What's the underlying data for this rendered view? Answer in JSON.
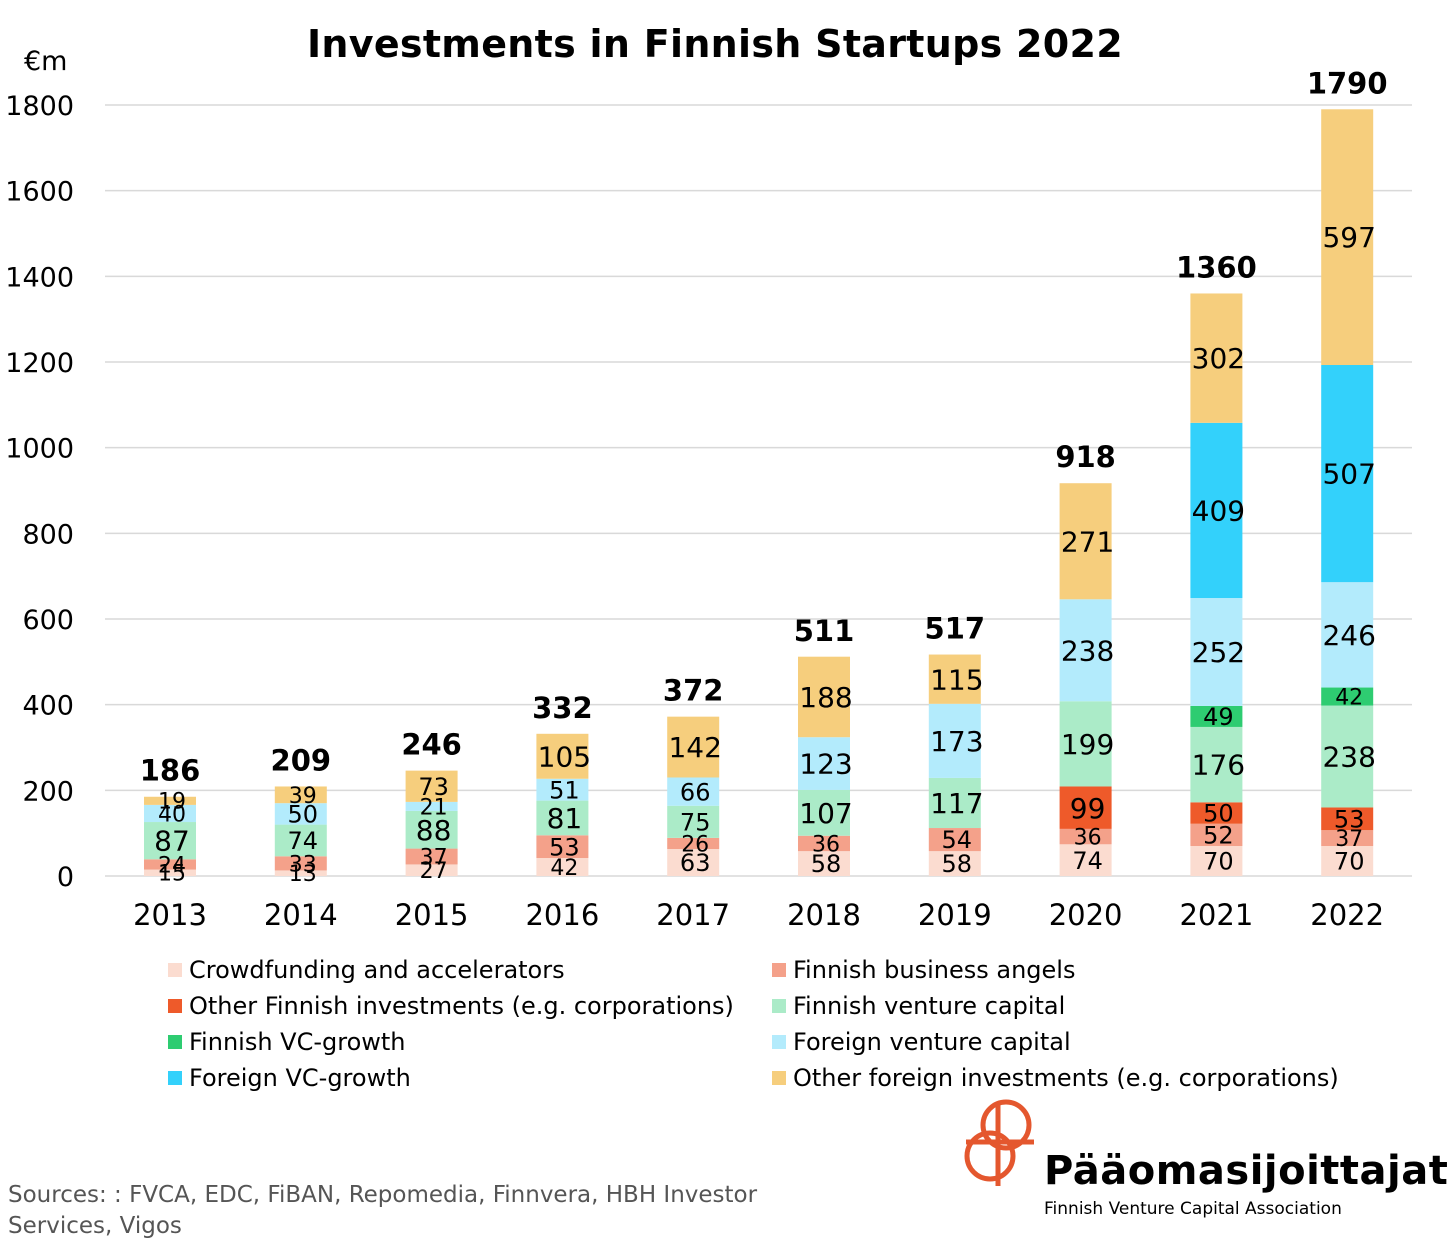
{
  "chart_data": {
    "type": "bar",
    "stacked": true,
    "title": "Investments in Finnish Startups 2022",
    "ylabel": "€m",
    "ylim": [
      0,
      1800
    ],
    "yticks": [
      0,
      200,
      400,
      600,
      800,
      1000,
      1200,
      1400,
      1600,
      1800
    ],
    "grid": true,
    "legend_position": "bottom",
    "categories": [
      "2013",
      "2014",
      "2015",
      "2016",
      "2017",
      "2018",
      "2019",
      "2020",
      "2021",
      "2022"
    ],
    "totals": [
      186,
      209,
      246,
      332,
      372,
      511,
      517,
      918,
      1360,
      1790
    ],
    "series": [
      {
        "name": "Crowdfunding and accelerators",
        "color": "#fbdcd0",
        "values": [
          15,
          13,
          27,
          42,
          63,
          58,
          58,
          74,
          70,
          70
        ]
      },
      {
        "name": "Finnish business angels",
        "color": "#f4a18a",
        "values": [
          24,
          33,
          37,
          53,
          26,
          36,
          54,
          36,
          52,
          37
        ]
      },
      {
        "name": "Other Finnish investments (e.g. corporations)",
        "color": "#ee5a2a",
        "values": [
          null,
          null,
          null,
          null,
          null,
          null,
          null,
          99,
          50,
          53
        ]
      },
      {
        "name": "Finnish venture capital",
        "color": "#abebc8",
        "values": [
          87,
          74,
          88,
          81,
          75,
          107,
          117,
          199,
          176,
          238
        ]
      },
      {
        "name": "Finnish VC-growth",
        "color": "#2ecc71",
        "values": [
          null,
          null,
          null,
          null,
          null,
          null,
          null,
          null,
          49,
          42
        ]
      },
      {
        "name": "Foreign venture capital",
        "color": "#b3ebfc",
        "values": [
          40,
          50,
          21,
          51,
          66,
          123,
          173,
          238,
          252,
          246
        ]
      },
      {
        "name": "Foreign VC-growth",
        "color": "#33d1fb",
        "values": [
          null,
          null,
          null,
          null,
          null,
          null,
          null,
          null,
          409,
          507
        ]
      },
      {
        "name": "Other foreign investments (e.g. corporations)",
        "color": "#f6ce7d",
        "values": [
          19,
          39,
          73,
          105,
          142,
          188,
          115,
          271,
          302,
          597
        ]
      }
    ]
  },
  "legend": [
    {
      "label": "Crowdfunding and accelerators",
      "color": "#fbdcd0"
    },
    {
      "label": "Finnish business angels",
      "color": "#f4a18a"
    },
    {
      "label": "Other Finnish investments (e.g. corporations)",
      "color": "#ee5a2a"
    },
    {
      "label": "Finnish venture capital",
      "color": "#abebc8"
    },
    {
      "label": "Finnish VC-growth",
      "color": "#2ecc71"
    },
    {
      "label": "Foreign venture capital",
      "color": "#b3ebfc"
    },
    {
      "label": "Foreign VC-growth",
      "color": "#33d1fb"
    },
    {
      "label": "Other foreign investments (e.g. corporations)",
      "color": "#f6ce7d"
    }
  ],
  "sources": "Sources: : FVCA, EDC, FiBAN, Repomedia, Finnvera, HBH Investor Services, Vigos",
  "logo": {
    "name": "Pääomasijoittajat",
    "subtitle": "Finnish Venture Capital Association",
    "color": "#e4572e"
  }
}
